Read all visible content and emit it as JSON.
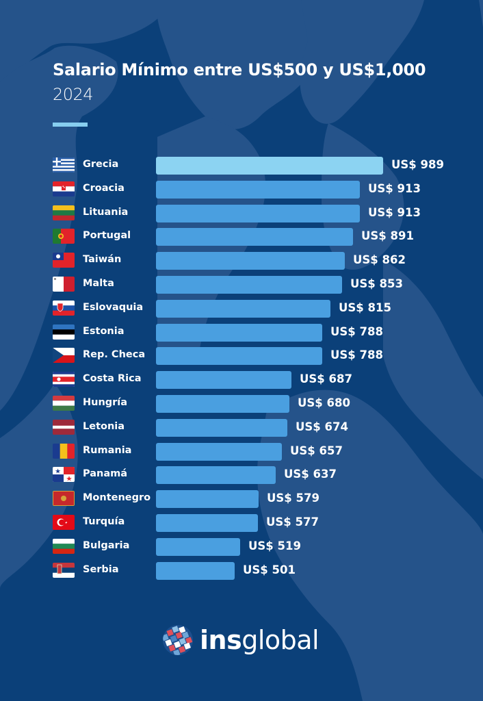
{
  "header": {
    "title": "Salario Mínimo entre US$500 y US$1,000",
    "subtitle": "2024"
  },
  "colors": {
    "background": "#0b4079",
    "map_land": "#25538a",
    "bar": "#4a9fe0",
    "bar_highlight": "#8cd3f2",
    "accent_line": "#87ceef",
    "text": "#ffffff"
  },
  "rows": [
    {
      "country": "Grecia",
      "flag": "greece-flag",
      "value_label": "US$ 989"
    },
    {
      "country": "Croacia",
      "flag": "croatia-flag",
      "value_label": "US$ 913"
    },
    {
      "country": "Lituania",
      "flag": "lithuania-flag",
      "value_label": "US$ 913"
    },
    {
      "country": "Portugal",
      "flag": "portugal-flag",
      "value_label": "US$ 891"
    },
    {
      "country": "Taiwán",
      "flag": "taiwan-flag",
      "value_label": "US$ 862"
    },
    {
      "country": "Malta",
      "flag": "malta-flag",
      "value_label": "US$ 853"
    },
    {
      "country": "Eslovaquia",
      "flag": "slovakia-flag",
      "value_label": "US$ 815"
    },
    {
      "country": "Estonia",
      "flag": "estonia-flag",
      "value_label": "US$ 788"
    },
    {
      "country": "Rep. Checa",
      "flag": "czech-flag",
      "value_label": "US$ 788"
    },
    {
      "country": "Costa Rica",
      "flag": "costa-rica-flag",
      "value_label": "US$ 687"
    },
    {
      "country": "Hungría",
      "flag": "hungary-flag",
      "value_label": "US$ 680"
    },
    {
      "country": "Letonia",
      "flag": "latvia-flag",
      "value_label": "US$ 674"
    },
    {
      "country": "Rumania",
      "flag": "romania-flag",
      "value_label": "US$ 657"
    },
    {
      "country": "Panamá",
      "flag": "panama-flag",
      "value_label": "US$ 637"
    },
    {
      "country": "Montenegro",
      "flag": "montenegro-flag",
      "value_label": "US$ 579"
    },
    {
      "country": "Turquía",
      "flag": "turkey-flag",
      "value_label": "US$ 577"
    },
    {
      "country": "Bulgaria",
      "flag": "bulgaria-flag",
      "value_label": "US$ 519"
    },
    {
      "country": "Serbia",
      "flag": "serbia-flag",
      "value_label": "US$ 501"
    }
  ],
  "logo": {
    "bold": "ins",
    "regular": "global",
    "icon": "globe-mosaic-icon"
  },
  "chart_data": {
    "type": "bar",
    "orientation": "horizontal",
    "title": "Salario Mínimo entre US$500 y US$1,000",
    "subtitle": "2024",
    "xlabel": "",
    "ylabel": "",
    "categories": [
      "Grecia",
      "Croacia",
      "Lituania",
      "Portugal",
      "Taiwán",
      "Malta",
      "Eslovaquia",
      "Estonia",
      "Rep. Checa",
      "Costa Rica",
      "Hungría",
      "Letonia",
      "Rumania",
      "Panamá",
      "Montenegro",
      "Turquía",
      "Bulgaria",
      "Serbia"
    ],
    "values": [
      989,
      913,
      913,
      891,
      862,
      853,
      815,
      788,
      788,
      687,
      680,
      674,
      657,
      637,
      579,
      577,
      519,
      501
    ],
    "unit": "US$",
    "data_labels": true,
    "grid": false,
    "legend": false,
    "highlight": "Grecia"
  }
}
